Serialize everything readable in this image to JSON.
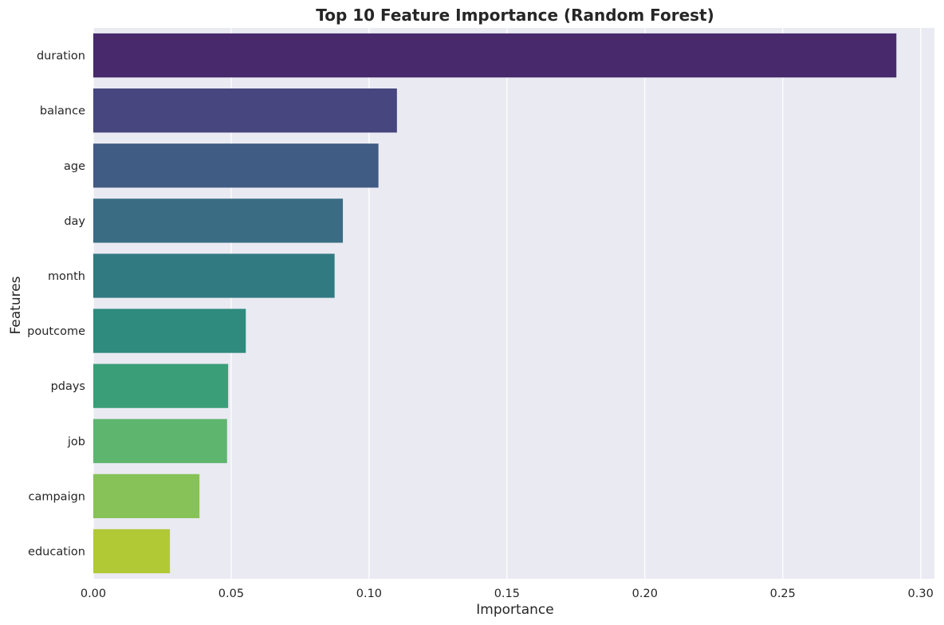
{
  "chart_data": {
    "type": "bar",
    "orientation": "horizontal",
    "title": "Top 10 Feature Importance (Random Forest)",
    "xlabel": "Importance",
    "ylabel": "Features",
    "categories": [
      "duration",
      "balance",
      "age",
      "day",
      "month",
      "poutcome",
      "pdays",
      "job",
      "campaign",
      "education"
    ],
    "values": [
      0.2912,
      0.1101,
      0.1034,
      0.0905,
      0.0875,
      0.0553,
      0.0489,
      0.0485,
      0.0385,
      0.0278
    ],
    "colors": [
      "#482A6C",
      "#47467E",
      "#415C84",
      "#3A6C84",
      "#327A81",
      "#2E8B7E",
      "#3A9E78",
      "#5EB56E",
      "#86C258",
      "#B2C936"
    ],
    "xlim": [
      0.0,
      0.305
    ],
    "xticks": [
      0.0,
      0.05,
      0.1,
      0.15,
      0.2,
      0.25,
      0.3
    ],
    "xtick_labels": [
      "0.00",
      "0.05",
      "0.10",
      "0.15",
      "0.20",
      "0.25",
      "0.30"
    ],
    "grid": true,
    "grid_axis": "x",
    "background_color": "#EAEAF2",
    "grid_color": "#FFFFFF"
  }
}
